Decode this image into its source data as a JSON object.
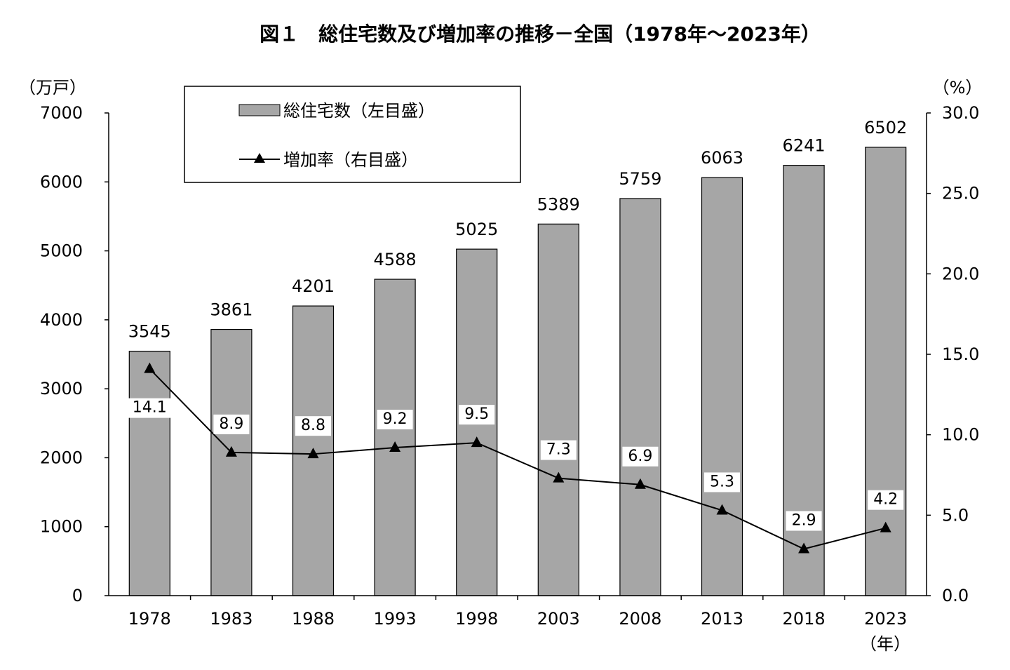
{
  "chart_data": {
    "type": "bar+line",
    "title": "図１　総住宅数及び増加率の推移－全国（1978年～2023年）",
    "categories": [
      "1978",
      "1983",
      "1988",
      "1993",
      "1998",
      "2003",
      "2008",
      "2013",
      "2018",
      "2023"
    ],
    "series": [
      {
        "name": "総住宅数（左目盛）",
        "type": "bar",
        "axis": "left",
        "values": [
          3545,
          3861,
          4201,
          4588,
          5025,
          5389,
          5759,
          6063,
          6241,
          6502
        ],
        "labels": [
          "3545",
          "3861",
          "4201",
          "4588",
          "5025",
          "5389",
          "5759",
          "6063",
          "6241",
          "6502"
        ]
      },
      {
        "name": "増加率（右目盛）",
        "type": "line",
        "axis": "right",
        "values": [
          14.1,
          8.9,
          8.8,
          9.2,
          9.5,
          7.3,
          6.9,
          5.3,
          2.9,
          4.2
        ],
        "labels": [
          "14.1",
          "8.9",
          "8.8",
          "9.2",
          "9.5",
          "7.3",
          "6.9",
          "5.3",
          "2.9",
          "4.2"
        ]
      }
    ],
    "left_axis": {
      "unit": "（万戸）",
      "ylim": [
        0,
        7000
      ],
      "ticks": [
        "0",
        "1000",
        "2000",
        "3000",
        "4000",
        "5000",
        "6000",
        "7000"
      ]
    },
    "right_axis": {
      "unit": "（%）",
      "ylim": [
        0,
        30
      ],
      "ticks": [
        "0.0",
        "5.0",
        "10.0",
        "15.0",
        "20.0",
        "25.0",
        "30.0"
      ]
    },
    "x_unit": "（年）",
    "legend_position": "top-left",
    "grid": false,
    "colors": {
      "bar": "#a6a6a6",
      "line": "#000000"
    }
  }
}
